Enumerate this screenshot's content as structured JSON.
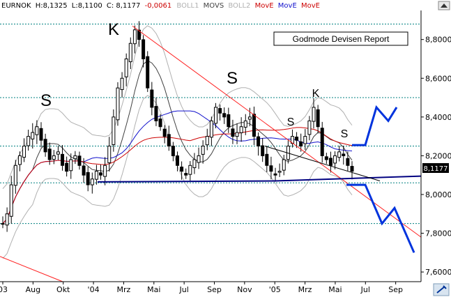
{
  "header": {
    "symbol": "EURNOK",
    "high": "H:8,1325",
    "low": "L:8,1100",
    "close": "C: 8,1177",
    "change": "-0,0061",
    "ind1": "BOLL1",
    "ind2": "MOVS",
    "ind3": "BOLL2",
    "ind4": "MovE",
    "ind5": "MovE",
    "ind6": "MovE"
  },
  "colors": {
    "candle": "#000000",
    "bollinger": "#b0b0b0",
    "sma_short": "#404040",
    "ema_mid": "#1010cc",
    "ema_long": "#cc0000",
    "trendline": "#ff2020",
    "support": "#000080",
    "projection": "#0033dd",
    "hline": "#008080",
    "ind4": "#cc0000",
    "ind5": "#1010cc",
    "ind6": "#cc0000",
    "change": "#cc0000"
  },
  "chart_data": {
    "type": "candlestick",
    "title": "Godmode Devisen Report",
    "ylim": [
      7.55,
      8.95
    ],
    "y_ticks": [
      "8,8000",
      "8,6000",
      "8,4000",
      "8,2000",
      "8,0000",
      "7,8000",
      "7,6000"
    ],
    "y_tick_values": [
      8.8,
      8.6,
      8.4,
      8.2,
      8.0,
      7.8,
      7.6
    ],
    "x_ticks": [
      "03",
      "Aug",
      "Okt",
      "'04",
      "Mrz",
      "Mai",
      "Jul",
      "Sep",
      "Nov",
      "'05",
      "Mrz",
      "Mai",
      "Jul",
      "Sep"
    ],
    "last_price_label": "8,1177",
    "last_price": 8.1177,
    "horizontal_levels": [
      8.88,
      8.5,
      8.25,
      8.06,
      7.85
    ],
    "pattern_labels": [
      "S",
      "K",
      "S",
      "S",
      "K",
      "S"
    ],
    "candles": [
      7.85,
      7.9,
      8.05,
      8.15,
      8.2,
      8.25,
      8.3,
      8.32,
      8.35,
      8.28,
      8.22,
      8.18,
      8.2,
      8.22,
      8.15,
      8.12,
      8.18,
      8.2,
      8.15,
      8.1,
      8.05,
      8.08,
      8.12,
      8.1,
      8.15,
      8.25,
      8.4,
      8.55,
      8.6,
      8.7,
      8.78,
      8.85,
      8.8,
      8.7,
      8.55,
      8.45,
      8.38,
      8.35,
      8.3,
      8.25,
      8.2,
      8.15,
      8.12,
      8.1,
      8.15,
      8.18,
      8.2,
      8.25,
      8.3,
      8.38,
      8.45,
      8.42,
      8.4,
      8.35,
      8.3,
      8.32,
      8.35,
      8.38,
      8.4,
      8.3,
      8.25,
      8.2,
      8.15,
      8.12,
      8.1,
      8.12,
      8.18,
      8.25,
      8.3,
      8.28,
      8.25,
      8.3,
      8.38,
      8.45,
      8.35,
      8.2,
      8.18,
      8.15,
      8.2,
      8.22,
      8.2,
      8.15,
      8.12
    ],
    "projection_up": [
      [
        8.255,
        8.255
      ],
      [
        8.45,
        8.38,
        8.45
      ]
    ],
    "projection_down": [
      [
        8.05,
        8.05
      ],
      [
        7.85,
        7.93
      ],
      [
        7.7
      ]
    ]
  }
}
